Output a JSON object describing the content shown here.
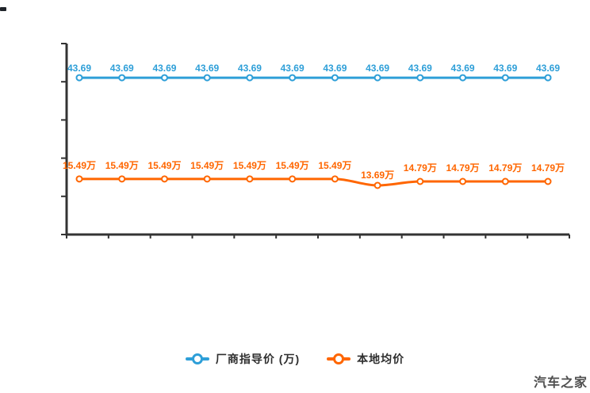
{
  "watermark": "汽车之家",
  "chart_data": {
    "type": "line",
    "smooth": true,
    "title": "",
    "xlabel": "",
    "ylabel": "",
    "x_axis": {
      "tick_count": 13,
      "labels_visible": false
    },
    "y_axis": {
      "tick_count": 6,
      "labels_visible": false,
      "approx_range": [
        0,
        53
      ]
    },
    "axis_color": "#333333",
    "legend_position": "bottom",
    "series": [
      {
        "name": "厂商指导价 (万)",
        "color": "#2e9fd8",
        "values": [
          43.69,
          43.69,
          43.69,
          43.69,
          43.69,
          43.69,
          43.69,
          43.69,
          43.69,
          43.69,
          43.69,
          43.69
        ],
        "point_labels": [
          "43.69",
          "43.69",
          "43.69",
          "43.69",
          "43.69",
          "43.69",
          "43.69",
          "43.69",
          "43.69",
          "43.69",
          "43.69",
          "43.69"
        ]
      },
      {
        "name": "本地均价",
        "color": "#ff6600",
        "values": [
          15.49,
          15.49,
          15.49,
          15.49,
          15.49,
          15.49,
          15.49,
          13.69,
          14.79,
          14.79,
          14.79,
          14.79
        ],
        "point_labels": [
          "15.49万",
          "15.49万",
          "15.49万",
          "15.49万",
          "15.49万",
          "15.49万",
          "15.49万",
          "13.69万",
          "14.79万",
          "14.79万",
          "14.79万",
          "14.79万"
        ]
      }
    ],
    "legend": [
      {
        "label": "厂商指导价 (万)",
        "color": "#2e9fd8"
      },
      {
        "label": "本地均价",
        "color": "#ff6600"
      }
    ]
  }
}
